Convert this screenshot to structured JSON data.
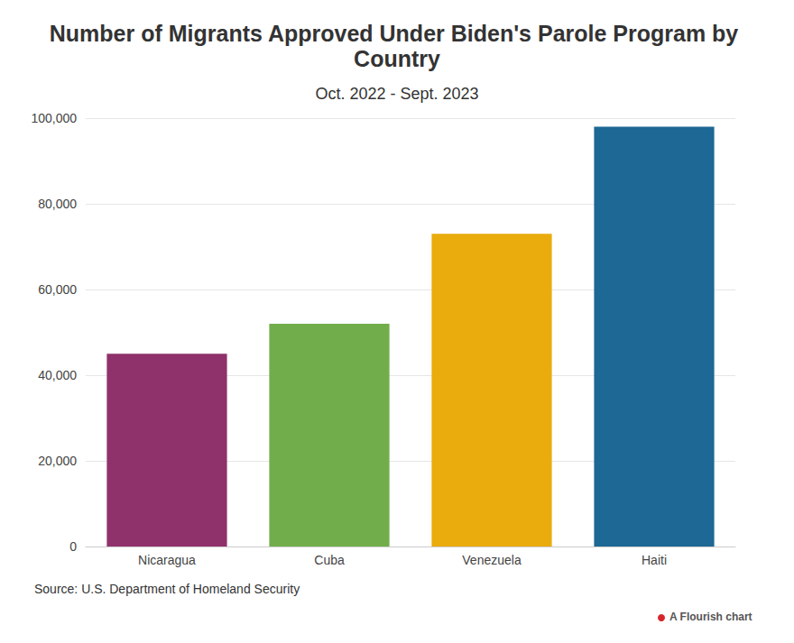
{
  "chart_data": {
    "type": "bar",
    "title": "Number of Migrants Approved Under Biden's Parole Program by Country",
    "subtitle": "Oct. 2022 - Sept. 2023",
    "categories": [
      "Nicaragua",
      "Cuba",
      "Venezuela",
      "Haiti"
    ],
    "values": [
      45000,
      52000,
      73000,
      98000
    ],
    "colors": [
      "#8f316b",
      "#72ad4b",
      "#eaab0c",
      "#1d6894"
    ],
    "ylim": [
      0,
      100000
    ],
    "yticks": [
      0,
      {
        "value": 20000,
        "label": "20,000"
      },
      {
        "value": 40000,
        "label": "40,000"
      },
      {
        "value": 60000,
        "label": "60,000"
      },
      {
        "value": 80000,
        "label": "80,000"
      },
      {
        "value": 100000,
        "label": "100,000"
      }
    ],
    "grid": true,
    "source": "Source: U.S. Department of Homeland Security",
    "credit": "A Flourish chart"
  }
}
